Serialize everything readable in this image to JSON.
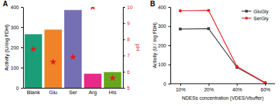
{
  "chart_data": [
    {
      "type": "bar",
      "title": "A",
      "categories": [
        "Blank",
        "Glu",
        "Ser",
        "Arg",
        "His"
      ],
      "y_label": "Activity (U/mg FDH)",
      "y2_label": "pH",
      "ylim": [
        0,
        400
      ],
      "yticks": [
        0,
        100,
        200,
        300,
        400
      ],
      "y2lim": [
        5,
        10
      ],
      "y2ticks": [
        5,
        6,
        7,
        8,
        9,
        10
      ],
      "grid": false,
      "series": [
        {
          "type": "bar",
          "colors": [
            "#1b9e77",
            "#f0822a",
            "#7570b3",
            "#e7298a",
            "#66a61e"
          ],
          "values": [
            265,
            288,
            385,
            70,
            78
          ]
        },
        {
          "type": "scatter",
          "axis": "y2",
          "color": "#e41a1c",
          "marker": "star",
          "values": [
            7.4,
            6.6,
            6.9,
            10.0,
            5.6
          ]
        }
      ]
    },
    {
      "type": "line",
      "title": "B",
      "categories": [
        "10%",
        "20%",
        "40%",
        "60%"
      ],
      "x_label": "NDESs concentration (VDES/Vbuffer)",
      "y_label": "Activity (U / mg FDH)",
      "ylim": [
        0,
        400
      ],
      "yticks": [
        0,
        100,
        200,
        300,
        400
      ],
      "grid": false,
      "legend": "top-right",
      "series": [
        {
          "name": "GluGly",
          "color": "#404040",
          "marker": "square",
          "values": [
            285,
            287,
            85,
            3
          ]
        },
        {
          "name": "SerGly",
          "color": "#e8262a",
          "marker": "circle",
          "values": [
            380,
            382,
            90,
            5
          ]
        }
      ]
    }
  ]
}
